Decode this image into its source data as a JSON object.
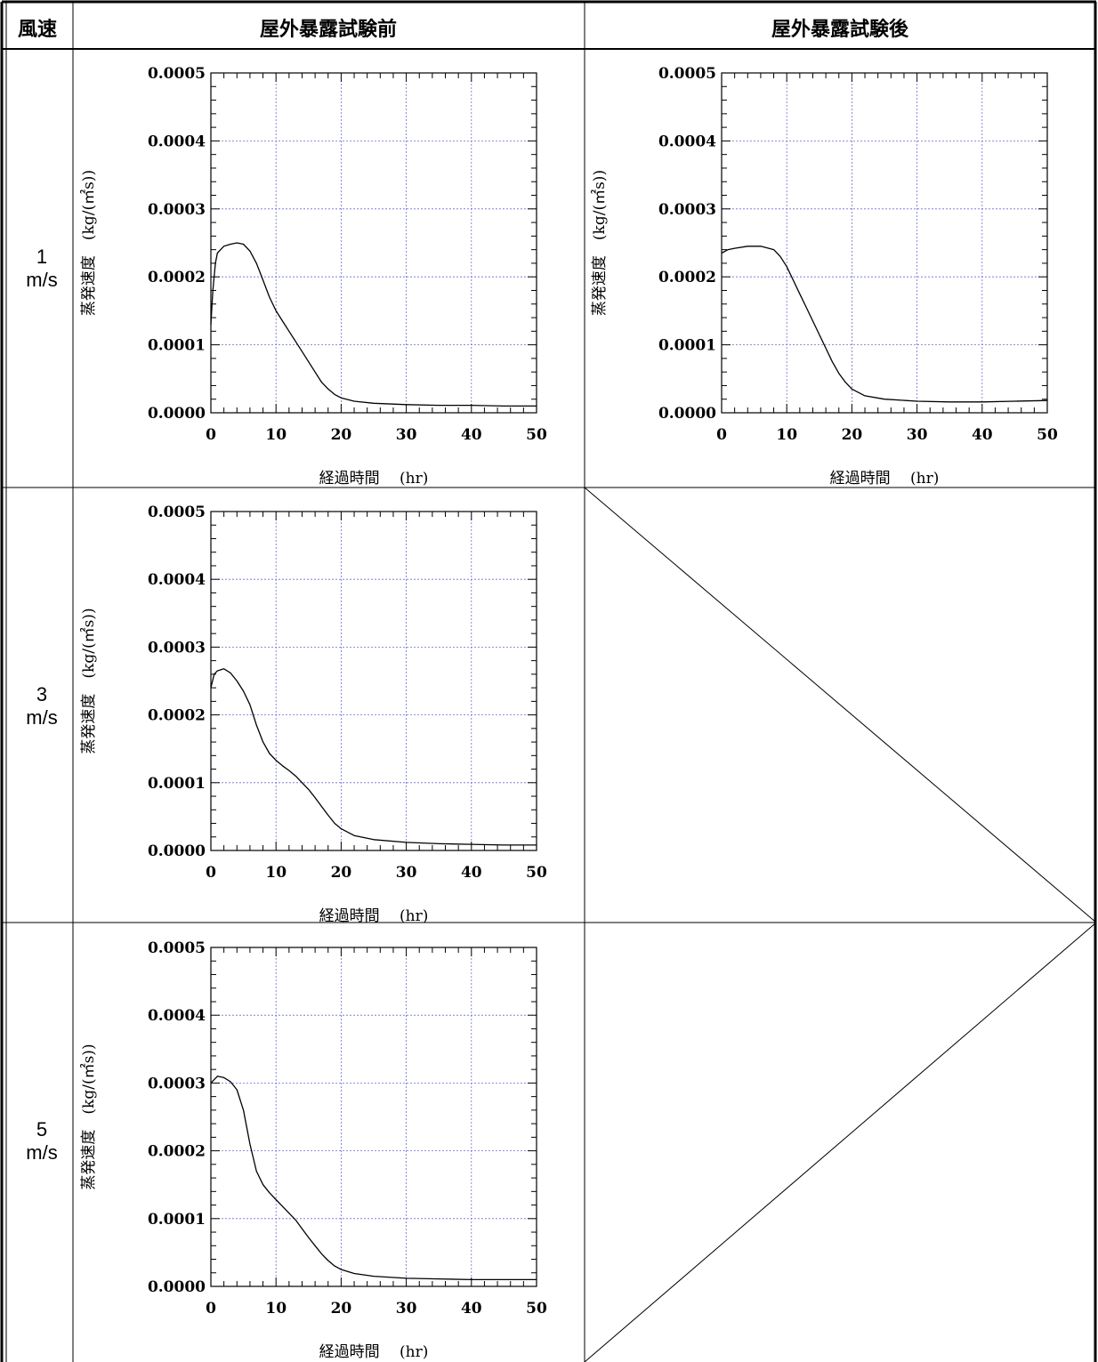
{
  "table": {
    "header": {
      "wind": "風速",
      "before": "屋外暴露試験前",
      "after": "屋外暴露試験後"
    },
    "rows": [
      {
        "num": "1",
        "unit": "m/s"
      },
      {
        "num": "3",
        "unit": "m/s"
      },
      {
        "num": "5",
        "unit": "m/s"
      }
    ]
  },
  "axis": {
    "ylabel": "蒸発速度　(kg/(㎡s))",
    "xlabel": "経過時間　 (hr)",
    "xticks": [
      "0",
      "10",
      "20",
      "30",
      "40",
      "50"
    ],
    "yticks": [
      "0.0000",
      "0.0001",
      "0.0002",
      "0.0003",
      "0.0004",
      "0.0005"
    ]
  },
  "chart_data": [
    {
      "type": "line",
      "xlabel": "経過時間　 (hr)",
      "ylabel": "蒸発速度　(kg/(㎡s))",
      "xlim": [
        0,
        50
      ],
      "ylim": [
        0,
        0.0005
      ],
      "grid": true,
      "series": [
        {
          "x": [
            0,
            0.3,
            0.7,
            1,
            1.5,
            2,
            3,
            4,
            5,
            6,
            7,
            8,
            9,
            10,
            11,
            12,
            13,
            14,
            15,
            16,
            17,
            18,
            19,
            20,
            22,
            25,
            30,
            35,
            40,
            45,
            50
          ],
          "y": [
            0.00013,
            0.00018,
            0.00022,
            0.000235,
            0.00024,
            0.000245,
            0.000248,
            0.00025,
            0.000248,
            0.000238,
            0.00022,
            0.000195,
            0.00017,
            0.00015,
            0.000135,
            0.00012,
            0.000105,
            9e-05,
            7.5e-05,
            6e-05,
            4.5e-05,
            3.5e-05,
            2.7e-05,
            2.2e-05,
            1.7e-05,
            1.4e-05,
            1.2e-05,
            1.1e-05,
            1.1e-05,
            1e-05,
            1e-05
          ]
        }
      ]
    },
    {
      "type": "line",
      "xlabel": "経過時間　 (hr)",
      "ylabel": "蒸発速度　(kg/(㎡s))",
      "xlim": [
        0,
        50
      ],
      "ylim": [
        0,
        0.0005
      ],
      "grid": true,
      "series": [
        {
          "x": [
            0,
            1,
            2,
            4,
            6,
            8,
            9,
            10,
            11,
            12,
            13,
            14,
            15,
            16,
            17,
            18,
            19,
            20,
            22,
            25,
            30,
            35,
            40,
            45,
            50
          ],
          "y": [
            0.000235,
            0.00024,
            0.000242,
            0.000245,
            0.000245,
            0.00024,
            0.00023,
            0.000215,
            0.000195,
            0.000175,
            0.000155,
            0.000135,
            0.000115,
            9.5e-05,
            7.5e-05,
            5.8e-05,
            4.5e-05,
            3.5e-05,
            2.5e-05,
            2e-05,
            1.7e-05,
            1.6e-05,
            1.6e-05,
            1.7e-05,
            1.8e-05
          ]
        }
      ]
    },
    {
      "type": "line",
      "xlabel": "経過時間　 (hr)",
      "ylabel": "蒸発速度　(kg/(㎡s))",
      "xlim": [
        0,
        50
      ],
      "ylim": [
        0,
        0.0005
      ],
      "grid": true,
      "series": [
        {
          "x": [
            0,
            0.5,
            1,
            2,
            3,
            4,
            5,
            6,
            7,
            8,
            9,
            10,
            11,
            12,
            13,
            14,
            15,
            16,
            17,
            18,
            19,
            20,
            22,
            25,
            30,
            35,
            40,
            45,
            50
          ],
          "y": [
            0.00024,
            0.00026,
            0.000265,
            0.000268,
            0.000262,
            0.00025,
            0.000235,
            0.000215,
            0.000185,
            0.00016,
            0.000143,
            0.000133,
            0.000125,
            0.000118,
            0.00011,
            0.0001,
            9e-05,
            7.8e-05,
            6.5e-05,
            5.2e-05,
            4e-05,
            3.2e-05,
            2.2e-05,
            1.6e-05,
            1.2e-05,
            1e-05,
            9e-06,
            8e-06,
            8e-06
          ]
        }
      ]
    },
    {
      "type": "line",
      "xlabel": "経過時間　 (hr)",
      "ylabel": "蒸発速度　(kg/(㎡s))",
      "xlim": [
        0,
        50
      ],
      "ylim": [
        0,
        0.0005
      ],
      "grid": true,
      "series": [
        {
          "x": [
            0,
            0.5,
            1,
            2,
            3,
            4,
            5,
            6,
            7,
            8,
            9,
            10,
            11,
            12,
            13,
            14,
            15,
            16,
            17,
            18,
            19,
            20,
            22,
            25,
            30,
            35,
            40,
            45,
            50
          ],
          "y": [
            0.0003,
            0.000305,
            0.00031,
            0.000308,
            0.000302,
            0.00029,
            0.00026,
            0.00021,
            0.00017,
            0.00015,
            0.000138,
            0.000128,
            0.000118,
            0.000108,
            9.8e-05,
            8.5e-05,
            7.2e-05,
            6e-05,
            4.8e-05,
            3.8e-05,
            3e-05,
            2.5e-05,
            1.9e-05,
            1.5e-05,
            1.2e-05,
            1.1e-05,
            1e-05,
            1e-05,
            1e-05
          ]
        }
      ]
    }
  ],
  "style": {
    "line": "#000000",
    "grid": "#6b6bd6",
    "border": "#000000"
  }
}
